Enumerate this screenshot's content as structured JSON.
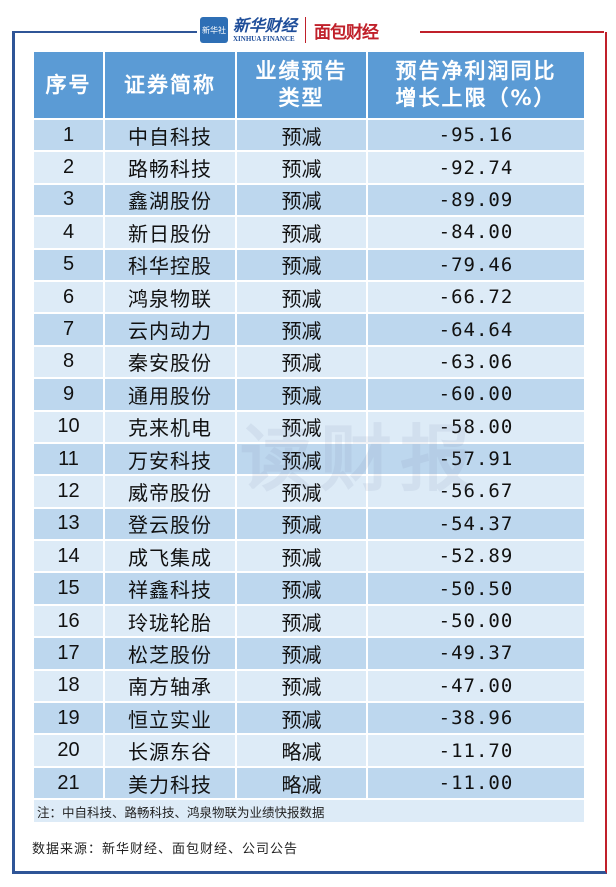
{
  "logos": {
    "xinhua_badge": "新华社",
    "xinhua_cn": "新华财经",
    "xinhua_en": "XINHUA FINANCE",
    "mianbao": "面包财经"
  },
  "watermark": "读财报",
  "table": {
    "headers": [
      "序号",
      "证券简称",
      "业绩预告\n类型",
      "预告净利润同比\n增长上限（%）"
    ],
    "rows": [
      [
        "1",
        "中自科技",
        "预减",
        "-95.16"
      ],
      [
        "2",
        "路畅科技",
        "预减",
        "-92.74"
      ],
      [
        "3",
        "鑫湖股份",
        "预减",
        "-89.09"
      ],
      [
        "4",
        "新日股份",
        "预减",
        "-84.00"
      ],
      [
        "5",
        "科华控股",
        "预减",
        "-79.46"
      ],
      [
        "6",
        "鸿泉物联",
        "预减",
        "-66.72"
      ],
      [
        "7",
        "云内动力",
        "预减",
        "-64.64"
      ],
      [
        "8",
        "秦安股份",
        "预减",
        "-63.06"
      ],
      [
        "9",
        "通用股份",
        "预减",
        "-60.00"
      ],
      [
        "10",
        "克来机电",
        "预减",
        "-58.00"
      ],
      [
        "11",
        "万安科技",
        "预减",
        "-57.91"
      ],
      [
        "12",
        "威帝股份",
        "预减",
        "-56.67"
      ],
      [
        "13",
        "登云股份",
        "预减",
        "-54.37"
      ],
      [
        "14",
        "成飞集成",
        "预减",
        "-52.89"
      ],
      [
        "15",
        "祥鑫科技",
        "预减",
        "-50.50"
      ],
      [
        "16",
        "玲珑轮胎",
        "预减",
        "-50.00"
      ],
      [
        "17",
        "松芝股份",
        "预减",
        "-49.37"
      ],
      [
        "18",
        "南方轴承",
        "预减",
        "-47.00"
      ],
      [
        "19",
        "恒立实业",
        "预减",
        "-38.96"
      ],
      [
        "20",
        "长源东谷",
        "略减",
        "-11.70"
      ],
      [
        "21",
        "美力科技",
        "略减",
        "-11.00"
      ]
    ],
    "note": "注：中自科技、路畅科技、鸿泉物联为业绩快报数据"
  },
  "source": "数据来源：新华财经、面包财经、公司公告",
  "colors": {
    "header": "#5b9bd5",
    "row_dark": "#bdd7ee",
    "row_light": "#ddebf7",
    "frame_blue": "#2f5597",
    "frame_red": "#c0202a"
  }
}
